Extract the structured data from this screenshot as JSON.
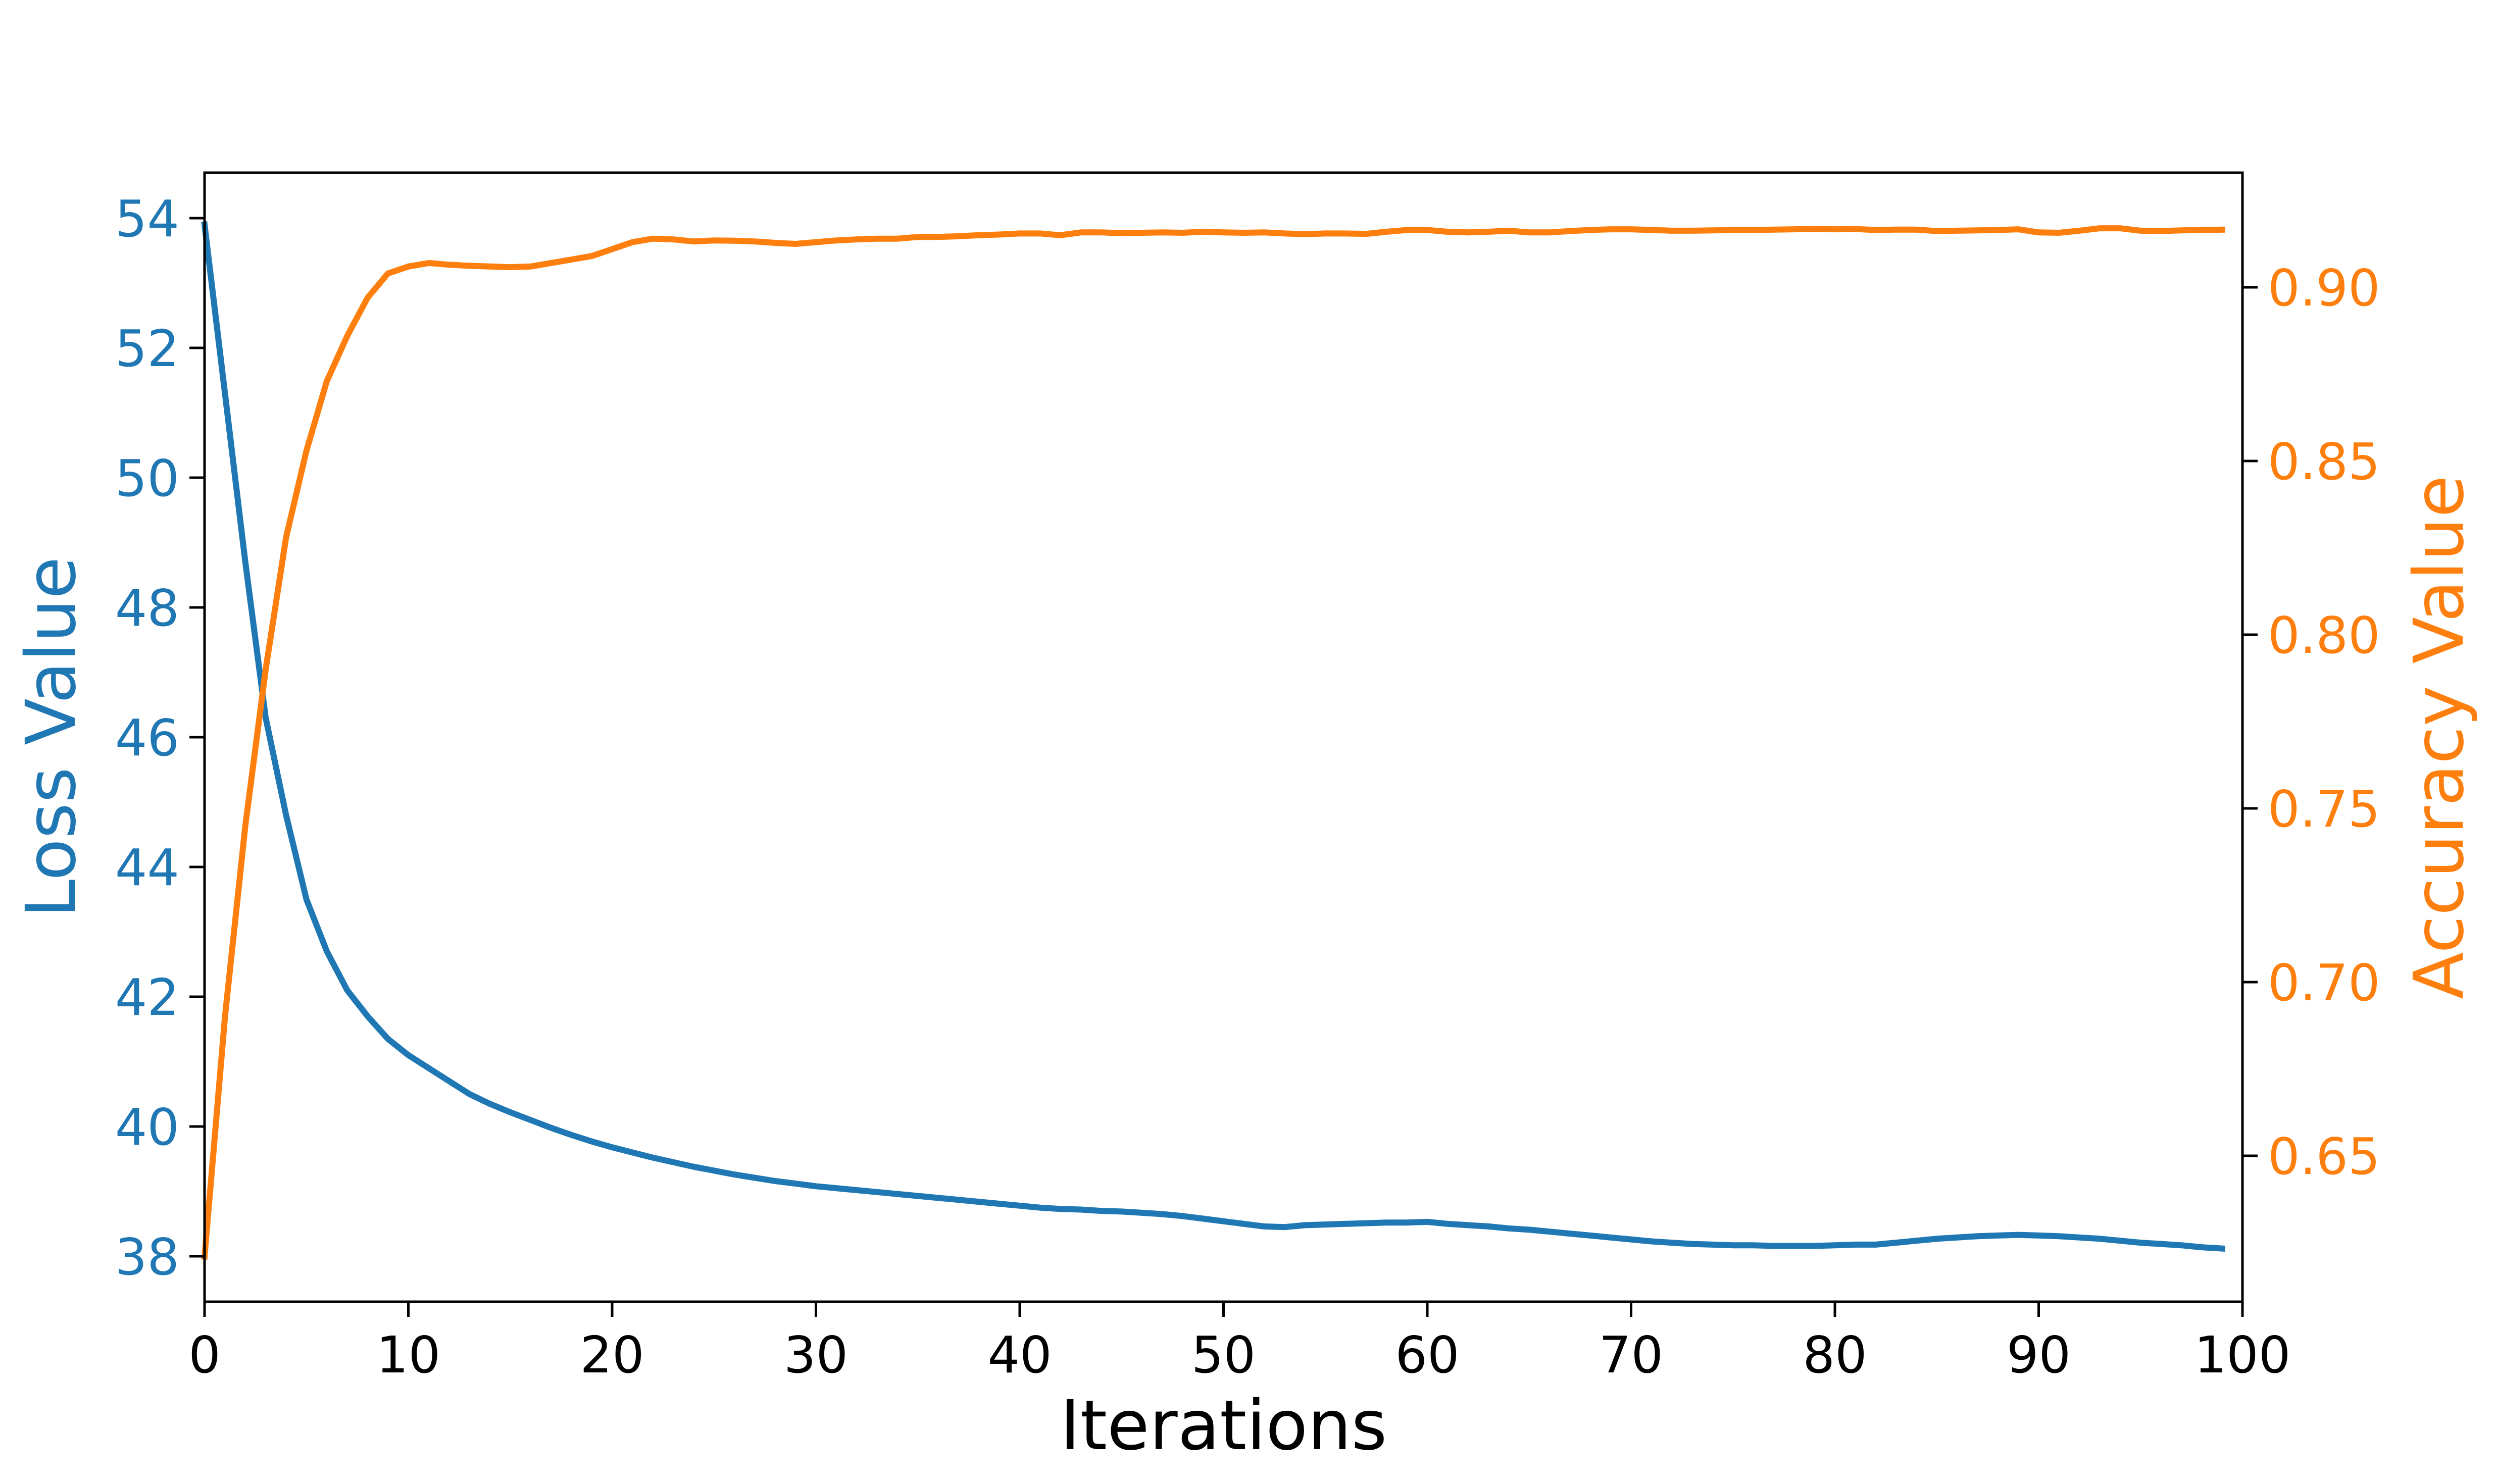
{
  "chart_data": {
    "type": "line",
    "xlabel": "Iterations",
    "ylabel_left": "Loss Value",
    "ylabel_right": "Accuracy Value",
    "xlim": [
      0,
      100
    ],
    "ylim_left": [
      37.3,
      54.7
    ],
    "ylim_right": [
      0.608,
      0.933
    ],
    "x_ticks": [
      0,
      10,
      20,
      30,
      40,
      50,
      60,
      70,
      80,
      90,
      100
    ],
    "y_left_ticks": [
      38,
      40,
      42,
      44,
      46,
      48,
      50,
      52,
      54
    ],
    "y_right_ticks": [
      0.65,
      0.7,
      0.75,
      0.8,
      0.85,
      0.9
    ],
    "y_right_tick_labels": [
      "0.65",
      "0.70",
      "0.75",
      "0.80",
      "0.85",
      "0.90"
    ],
    "grid": false,
    "colors": {
      "loss": "#1f77b4",
      "accuracy": "#ff7f0e",
      "axes": "#000000"
    },
    "series": [
      {
        "axis": "left",
        "color": "#1f77b4",
        "x": [
          0,
          1,
          2,
          3,
          4,
          5,
          6,
          7,
          8,
          9,
          10,
          11,
          12,
          13,
          14,
          15,
          16,
          17,
          18,
          19,
          20,
          21,
          22,
          23,
          24,
          25,
          26,
          27,
          28,
          29,
          30,
          31,
          32,
          33,
          34,
          35,
          36,
          37,
          38,
          39,
          40,
          41,
          42,
          43,
          44,
          45,
          46,
          47,
          48,
          49,
          50,
          51,
          52,
          53,
          54,
          55,
          56,
          57,
          58,
          59,
          60,
          61,
          62,
          63,
          64,
          65,
          66,
          67,
          68,
          69,
          70,
          71,
          72,
          73,
          74,
          75,
          76,
          77,
          78,
          79,
          80,
          81,
          82,
          83,
          84,
          85,
          86,
          87,
          88,
          89,
          90,
          91,
          92,
          93,
          94,
          95,
          96,
          97,
          98,
          99
        ],
        "values": [
          53.9,
          51.3,
          48.7,
          46.3,
          44.8,
          43.5,
          42.7,
          42.1,
          41.7,
          41.35,
          41.1,
          40.9,
          40.7,
          40.5,
          40.35,
          40.22,
          40.1,
          39.98,
          39.87,
          39.77,
          39.68,
          39.6,
          39.52,
          39.45,
          39.38,
          39.32,
          39.26,
          39.21,
          39.16,
          39.12,
          39.08,
          39.05,
          39.02,
          38.99,
          38.96,
          38.93,
          38.9,
          38.87,
          38.84,
          38.81,
          38.78,
          38.75,
          38.73,
          38.72,
          38.7,
          38.69,
          38.67,
          38.65,
          38.62,
          38.58,
          38.54,
          38.5,
          38.46,
          38.45,
          38.48,
          38.49,
          38.5,
          38.51,
          38.52,
          38.52,
          38.53,
          38.5,
          38.48,
          38.46,
          38.43,
          38.41,
          38.38,
          38.35,
          38.32,
          38.29,
          38.26,
          38.23,
          38.21,
          38.19,
          38.18,
          38.17,
          38.17,
          38.16,
          38.16,
          38.16,
          38.17,
          38.18,
          38.18,
          38.21,
          38.24,
          38.27,
          38.29,
          38.31,
          38.32,
          38.33,
          38.32,
          38.31,
          38.29,
          38.27,
          38.24,
          38.21,
          38.19,
          38.17,
          38.14,
          38.12
        ]
      },
      {
        "axis": "right",
        "color": "#ff7f0e",
        "x": [
          0,
          1,
          2,
          3,
          4,
          5,
          6,
          7,
          8,
          9,
          10,
          11,
          12,
          13,
          14,
          15,
          16,
          17,
          18,
          19,
          20,
          21,
          22,
          23,
          24,
          25,
          26,
          27,
          28,
          29,
          30,
          31,
          32,
          33,
          34,
          35,
          36,
          37,
          38,
          39,
          40,
          41,
          42,
          43,
          44,
          45,
          46,
          47,
          48,
          49,
          50,
          51,
          52,
          53,
          54,
          55,
          56,
          57,
          58,
          59,
          60,
          61,
          62,
          63,
          64,
          65,
          66,
          67,
          68,
          69,
          70,
          71,
          72,
          73,
          74,
          75,
          76,
          77,
          78,
          79,
          80,
          81,
          82,
          83,
          84,
          85,
          86,
          87,
          88,
          89,
          90,
          91,
          92,
          93,
          94,
          95,
          96,
          97,
          98,
          99
        ],
        "values": [
          0.621,
          0.69,
          0.745,
          0.79,
          0.828,
          0.853,
          0.873,
          0.886,
          0.897,
          0.904,
          0.906,
          0.907,
          0.9065,
          0.9062,
          0.906,
          0.9058,
          0.906,
          0.907,
          0.908,
          0.909,
          0.911,
          0.913,
          0.914,
          0.9138,
          0.9132,
          0.9135,
          0.9134,
          0.9132,
          0.9128,
          0.9125,
          0.913,
          0.9135,
          0.9138,
          0.914,
          0.914,
          0.9145,
          0.9145,
          0.9147,
          0.915,
          0.9152,
          0.9155,
          0.9155,
          0.915,
          0.9158,
          0.9158,
          0.9156,
          0.9157,
          0.9158,
          0.9157,
          0.916,
          0.9158,
          0.9157,
          0.9158,
          0.9155,
          0.9153,
          0.9155,
          0.9155,
          0.9154,
          0.916,
          0.9165,
          0.9165,
          0.916,
          0.9158,
          0.916,
          0.9163,
          0.9158,
          0.9158,
          0.9162,
          0.9165,
          0.9167,
          0.9167,
          0.9165,
          0.9163,
          0.9163,
          0.9164,
          0.9165,
          0.9165,
          0.9166,
          0.9167,
          0.9168,
          0.9167,
          0.9168,
          0.9165,
          0.9166,
          0.9166,
          0.9162,
          0.9163,
          0.9164,
          0.9165,
          0.9167,
          0.9158,
          0.9157,
          0.9163,
          0.917,
          0.917,
          0.9163,
          0.9162,
          0.9164,
          0.9165,
          0.9166
        ]
      }
    ]
  }
}
